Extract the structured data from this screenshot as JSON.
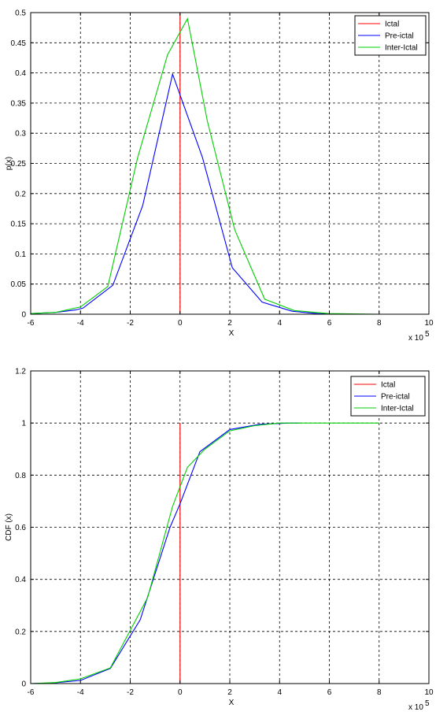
{
  "chart_data": [
    {
      "type": "line",
      "xlabel": "X",
      "ylabel": "p(x)",
      "x_multiplier": "x 10",
      "x_multiplier_exp": "5",
      "xlim": [
        -6,
        10
      ],
      "ylim": [
        0,
        0.5
      ],
      "xticks": [
        -6,
        -4,
        -2,
        0,
        2,
        4,
        6,
        8,
        10
      ],
      "yticks": [
        0,
        0.05,
        0.1,
        0.15,
        0.2,
        0.25,
        0.3,
        0.35,
        0.4,
        0.45,
        0.5
      ],
      "grid": true,
      "legend_position": "top-right",
      "series": [
        {
          "name": "Ictal",
          "color": "#ff0000",
          "x": [
            0,
            0
          ],
          "y": [
            0,
            0.5
          ]
        },
        {
          "name": "Pre-ictal",
          "color": "#0000ff",
          "x": [
            -6,
            -5,
            -4.2,
            -3.9,
            -2.7,
            -1.5,
            -0.3,
            0.9,
            2.1,
            3.3,
            4.5,
            5.5,
            6.5
          ],
          "y": [
            0.001,
            0.003,
            0.007,
            0.01,
            0.048,
            0.18,
            0.398,
            0.26,
            0.077,
            0.02,
            0.005,
            0.001,
            0.0
          ]
        },
        {
          "name": "Inter-Ictal",
          "color": "#00d000",
          "x": [
            -6,
            -5,
            -4,
            -2.9,
            -1.7,
            -0.5,
            0.3,
            1.1,
            2.2,
            3.4,
            4.6,
            6,
            8
          ],
          "y": [
            0.001,
            0.003,
            0.012,
            0.046,
            0.26,
            0.43,
            0.49,
            0.32,
            0.14,
            0.025,
            0.006,
            0.001,
            0.0
          ]
        }
      ]
    },
    {
      "type": "line",
      "xlabel": "X",
      "ylabel": "CDF (x)",
      "x_multiplier": "x 10",
      "x_multiplier_exp": "5",
      "xlim": [
        -6,
        10
      ],
      "ylim": [
        0,
        1.2
      ],
      "xticks": [
        -6,
        -4,
        -2,
        0,
        2,
        4,
        6,
        8,
        10
      ],
      "yticks": [
        0,
        0.2,
        0.4,
        0.6,
        0.8,
        1,
        1.2
      ],
      "grid": true,
      "legend_position": "top-right",
      "series": [
        {
          "name": "Ictal",
          "color": "#ff0000",
          "x": [
            0,
            0
          ],
          "y": [
            0,
            1.0
          ]
        },
        {
          "name": "Pre-ictal",
          "color": "#0000ff",
          "x": [
            -6,
            -5,
            -4,
            -2.8,
            -1.6,
            -0.4,
            0,
            0.8,
            2.0,
            3.2,
            4.4,
            4.8
          ],
          "y": [
            0.0,
            0.003,
            0.012,
            0.058,
            0.245,
            0.6,
            0.69,
            0.89,
            0.975,
            0.995,
            1.0,
            1.0
          ]
        },
        {
          "name": "Inter-Ictal",
          "color": "#00d000",
          "x": [
            -6,
            -5,
            -4,
            -2.8,
            -1.3,
            -0.3,
            0.3,
            1.0,
            2.0,
            3.0,
            4.0,
            5,
            8
          ],
          "y": [
            0.0,
            0.004,
            0.018,
            0.06,
            0.33,
            0.68,
            0.83,
            0.9,
            0.97,
            0.99,
            1.0,
            1.0,
            1.0
          ]
        }
      ]
    }
  ]
}
